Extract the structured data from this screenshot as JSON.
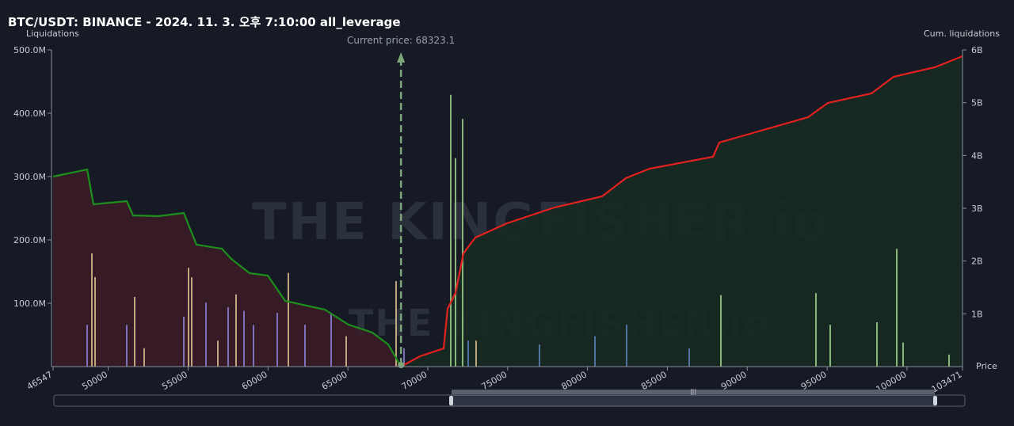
{
  "chart_data": {
    "type": "liquidation-map",
    "title": "BTC/USDT: BINANCE - 2024. 11. 3. 오후 7:10:00 all_leverage",
    "y_label": "Liquidations",
    "y2_label": "Cum. liquidations",
    "x_label": "Price",
    "watermark": "THE KINGFISHER.io",
    "annotations": [
      {
        "text": "Current price: 68323.1",
        "x": 68323.1
      }
    ],
    "xlim": [
      46547,
      103471
    ],
    "xticks": [
      46547,
      50000,
      55000,
      60000,
      65000,
      70000,
      75000,
      80000,
      85000,
      90000,
      95000,
      100000,
      103471
    ],
    "ylim": [
      0,
      500000000
    ],
    "yticks": [
      {
        "value": 100000000,
        "label": "100.0M"
      },
      {
        "value": 200000000,
        "label": "200.0M"
      },
      {
        "value": 300000000,
        "label": "300.0M"
      },
      {
        "value": 400000000,
        "label": "400.0M"
      },
      {
        "value": 500000000,
        "label": "500.0M"
      }
    ],
    "y2lim": [
      0,
      6000000000
    ],
    "y2ticks": [
      {
        "value": 1000000000,
        "label": "1B"
      },
      {
        "value": 2000000000,
        "label": "2B"
      },
      {
        "value": 3000000000,
        "label": "3B"
      },
      {
        "value": 4000000000,
        "label": "4B"
      },
      {
        "value": 5000000000,
        "label": "5B"
      },
      {
        "value": 6000000000,
        "label": "6B"
      }
    ],
    "series": [
      {
        "color": "#1d8f1d",
        "fill": "#3a1c28",
        "axis": "y2",
        "x": [
          46547,
          48679,
          49076,
          51158,
          51555,
          53142,
          54729,
          55522,
          57109,
          57704,
          58844,
          59985,
          61076,
          63555,
          65042,
          66530,
          67521,
          68323.1
        ],
        "values": [
          3600000000,
          3735000000,
          3075000000,
          3135000000,
          2865000000,
          2850000000,
          2910000000,
          2310000000,
          2235000000,
          2040000000,
          1770000000,
          1725000000,
          1245000000,
          1080000000,
          795000000,
          645000000,
          420000000,
          0
        ]
      },
      {
        "color": "#e3211f",
        "fill": "#172a22",
        "axis": "y2",
        "x": [
          68323.1,
          69506,
          70993,
          71241,
          71737,
          72233,
          72977,
          74960,
          77935,
          80910,
          82398,
          83885,
          87852,
          88249,
          93802,
          95042,
          97769,
          99158,
          101736,
          103471
        ],
        "values": [
          0,
          195000000,
          345000000,
          1095000000,
          1395000000,
          2145000000,
          2445000000,
          2715000000,
          3015000000,
          3225000000,
          3570000000,
          3750000000,
          3975000000,
          4245000000,
          4725000000,
          4995000000,
          5175000000,
          5490000000,
          5670000000,
          5880000000
        ]
      }
    ],
    "bars": {
      "x": [
        48679,
        48976,
        49175,
        51158,
        51654,
        52249,
        54729,
        55026,
        55224,
        56117,
        56861,
        57505,
        58001,
        58497,
        59092,
        60580,
        61274,
        62315,
        63952,
        64894,
        68018,
        68514,
        71439,
        71737,
        72183,
        72530,
        73026,
        76993,
        80464,
        82447,
        86364,
        88348,
        94298,
        95191,
        98116,
        99356,
        99753,
        102629
      ],
      "values": [
        66000000,
        178750000,
        141250000,
        66000000,
        110000000,
        29000000,
        79000000,
        156000000,
        141000000,
        101000000,
        41000000,
        94000000,
        114000000,
        88000000,
        66000000,
        85000000,
        148000000,
        66000000,
        85000000,
        48000000,
        135000000,
        29000000,
        429000000,
        329000000,
        391000000,
        41000000,
        41000000,
        35000000,
        48000000,
        66000000,
        29000000,
        113000000,
        116000000,
        66000000,
        70000000,
        186000000,
        38000000,
        19000000
      ],
      "colors": [
        "#8b7fd6",
        "#d9bd8c",
        "#d9bd8c",
        "#8b7fd6",
        "#d9bd8c",
        "#d9bd8c",
        "#8b7fd6",
        "#d9bd8c",
        "#d9bd8c",
        "#8b7fd6",
        "#d9bd8c",
        "#8b7fd6",
        "#d9bd8c",
        "#8b7fd6",
        "#8b7fd6",
        "#8b7fd6",
        "#d9bd8c",
        "#8b7fd6",
        "#8b7fd6",
        "#d9bd8c",
        "#d9bd8c",
        "#8b7fd6",
        "#9fd08a",
        "#9fd08a",
        "#9fd08a",
        "#5b80b8",
        "#d9bd8c",
        "#5b80b8",
        "#5b80b8",
        "#5b80b8",
        "#5b80b8",
        "#9fd08a",
        "#9fd08a",
        "#9fd08a",
        "#9fd08a",
        "#9fd08a",
        "#9fd08a",
        "#9fd08a"
      ]
    }
  }
}
